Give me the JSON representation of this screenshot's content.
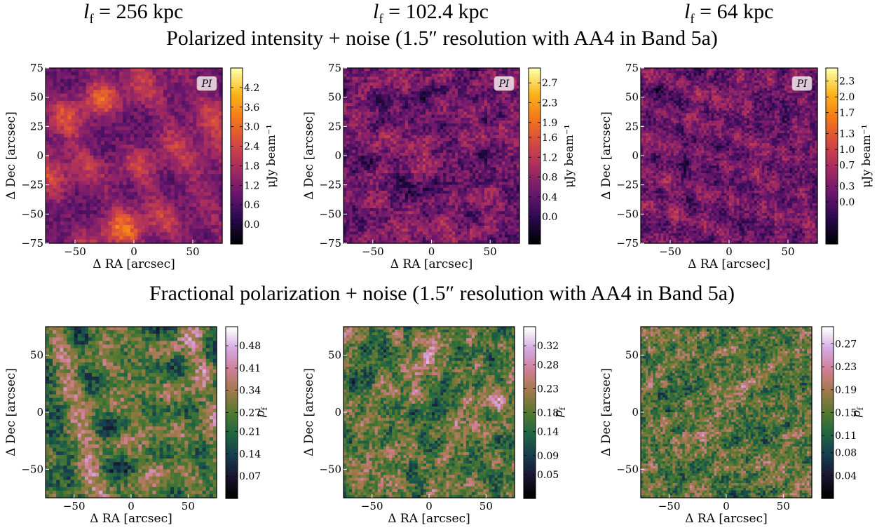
{
  "column_titles": [
    {
      "symbol": "l",
      "subscript": "f",
      "value": " = 256 kpc"
    },
    {
      "symbol": "l",
      "subscript": "f",
      "value": " = 102.4 kpc"
    },
    {
      "symbol": "l",
      "subscript": "f",
      "value": " = 64 kpc"
    }
  ],
  "row_titles": {
    "top": "Polarized intensity + noise (1.5″ resolution with AA4 in Band 5a)",
    "bottom": "Fractional polarization + noise (1.5″ resolution with AA4 in Band 5a)"
  },
  "colors": {
    "inferno": [
      "#000004",
      "#2a0a50",
      "#6a176e",
      "#a52c60",
      "#d44842",
      "#f3761b",
      "#fbb41a",
      "#fcffa4"
    ],
    "cubehelix": [
      "#000000",
      "#1a1530",
      "#163d4e",
      "#1f6642",
      "#54792f",
      "#a07949",
      "#d07e93",
      "#d3a8e2",
      "#ffffff"
    ]
  },
  "chart_data": [
    {
      "type": "heatmap",
      "panel": "PI l_f=256 kpc",
      "xlabel": "Δ RA [arcsec]",
      "ylabel": "Δ Dec [arcsec]",
      "xlim": [
        -75,
        75
      ],
      "ylim": [
        -75,
        75
      ],
      "xticks": [
        "−50",
        "0",
        "50"
      ],
      "yticks": [
        "75",
        "50",
        "25",
        "0",
        "−25",
        "−50",
        "−75"
      ],
      "annotation": "PI",
      "colorbar": {
        "label": "μJy beam⁻¹",
        "range": [
          -0.6,
          4.8
        ],
        "ticks": [
          0.0,
          0.6,
          1.2,
          1.8,
          2.4,
          3.0,
          3.6,
          4.2
        ],
        "tick_labels": [
          "0.0",
          "0.6",
          "1.2",
          "1.8",
          "2.4",
          "3.0",
          "3.6",
          "4.2"
        ]
      }
    },
    {
      "type": "heatmap",
      "panel": "PI l_f=102.4 kpc",
      "xlabel": "Δ RA [arcsec]",
      "ylabel": "Δ Dec [arcsec]",
      "xlim": [
        -75,
        75
      ],
      "ylim": [
        -75,
        75
      ],
      "xticks": [
        "−50",
        "0",
        "50"
      ],
      "yticks": [
        "75",
        "50",
        "25",
        "0",
        "−25",
        "−50",
        "−75"
      ],
      "annotation": "PI",
      "colorbar": {
        "label": "μJy beam⁻¹",
        "range": [
          -0.55,
          3.0
        ],
        "ticks": [
          0.0,
          0.4,
          0.8,
          1.2,
          1.6,
          1.9,
          2.3,
          2.7
        ],
        "tick_labels": [
          "0.0",
          "0.4",
          "0.8",
          "1.2",
          "1.6",
          "1.9",
          "2.3",
          "2.7"
        ]
      }
    },
    {
      "type": "heatmap",
      "panel": "PI l_f=64 kpc",
      "xlabel": "Δ RA [arcsec]",
      "ylabel": "Δ Dec [arcsec]",
      "xlim": [
        -75,
        75
      ],
      "ylim": [
        -75,
        75
      ],
      "xticks": [
        "−50",
        "0",
        "50"
      ],
      "yticks": [
        "75",
        "50",
        "25",
        "0",
        "−25",
        "−50",
        "−75"
      ],
      "annotation": "PI",
      "colorbar": {
        "label": "μJy beam⁻¹",
        "range": [
          -0.8,
          2.55
        ],
        "ticks": [
          0.0,
          0.3,
          0.7,
          1.0,
          1.3,
          1.7,
          2.0,
          2.3
        ],
        "tick_labels": [
          "0.0",
          "0.3",
          "0.7",
          "1.0",
          "1.3",
          "1.7",
          "2.0",
          "2.3"
        ]
      }
    },
    {
      "type": "heatmap",
      "panel": "pf l_f=256 kpc",
      "xlabel": "Δ RA [arcsec]",
      "ylabel": "Δ Dec [arcsec]",
      "xlim": [
        -75,
        75
      ],
      "ylim": [
        -75,
        75
      ],
      "xticks": [
        "−50",
        "0",
        "50"
      ],
      "yticks": [
        "50",
        "0",
        "−50"
      ],
      "colorbar": {
        "label": "p_f",
        "range": [
          0.0,
          0.54
        ],
        "ticks": [
          0.07,
          0.14,
          0.21,
          0.27,
          0.34,
          0.41,
          0.48
        ],
        "tick_labels": [
          "0.07",
          "0.14",
          "0.21",
          "0.27",
          "0.34",
          "0.41",
          "0.48"
        ]
      }
    },
    {
      "type": "heatmap",
      "panel": "pf l_f=102.4 kpc",
      "xlabel": "Δ RA [arcsec]",
      "ylabel": "Δ Dec [arcsec]",
      "xlim": [
        -75,
        75
      ],
      "ylim": [
        -75,
        75
      ],
      "xticks": [
        "−50",
        "0",
        "50"
      ],
      "yticks": [
        "50",
        "0",
        "−50"
      ],
      "colorbar": {
        "label": "p_f",
        "range": [
          0.0,
          0.36
        ],
        "ticks": [
          0.05,
          0.09,
          0.14,
          0.18,
          0.23,
          0.28,
          0.32
        ],
        "tick_labels": [
          "0.05",
          "0.09",
          "0.14",
          "0.18",
          "0.23",
          "0.28",
          "0.32"
        ]
      }
    },
    {
      "type": "heatmap",
      "panel": "pf l_f=64 kpc",
      "xlabel": "Δ RA [arcsec]",
      "ylabel": "Δ Dec [arcsec]",
      "xlim": [
        -75,
        75
      ],
      "ylim": [
        -75,
        75
      ],
      "xticks": [
        "−50",
        "0",
        "50"
      ],
      "yticks": [
        "50",
        "0",
        "−50"
      ],
      "colorbar": {
        "label": "p_f",
        "range": [
          0.0,
          0.3
        ],
        "ticks": [
          0.04,
          0.08,
          0.11,
          0.15,
          0.19,
          0.23,
          0.27
        ],
        "tick_labels": [
          "0.04",
          "0.08",
          "0.11",
          "0.15",
          "0.19",
          "0.23",
          "0.27"
        ]
      }
    }
  ]
}
